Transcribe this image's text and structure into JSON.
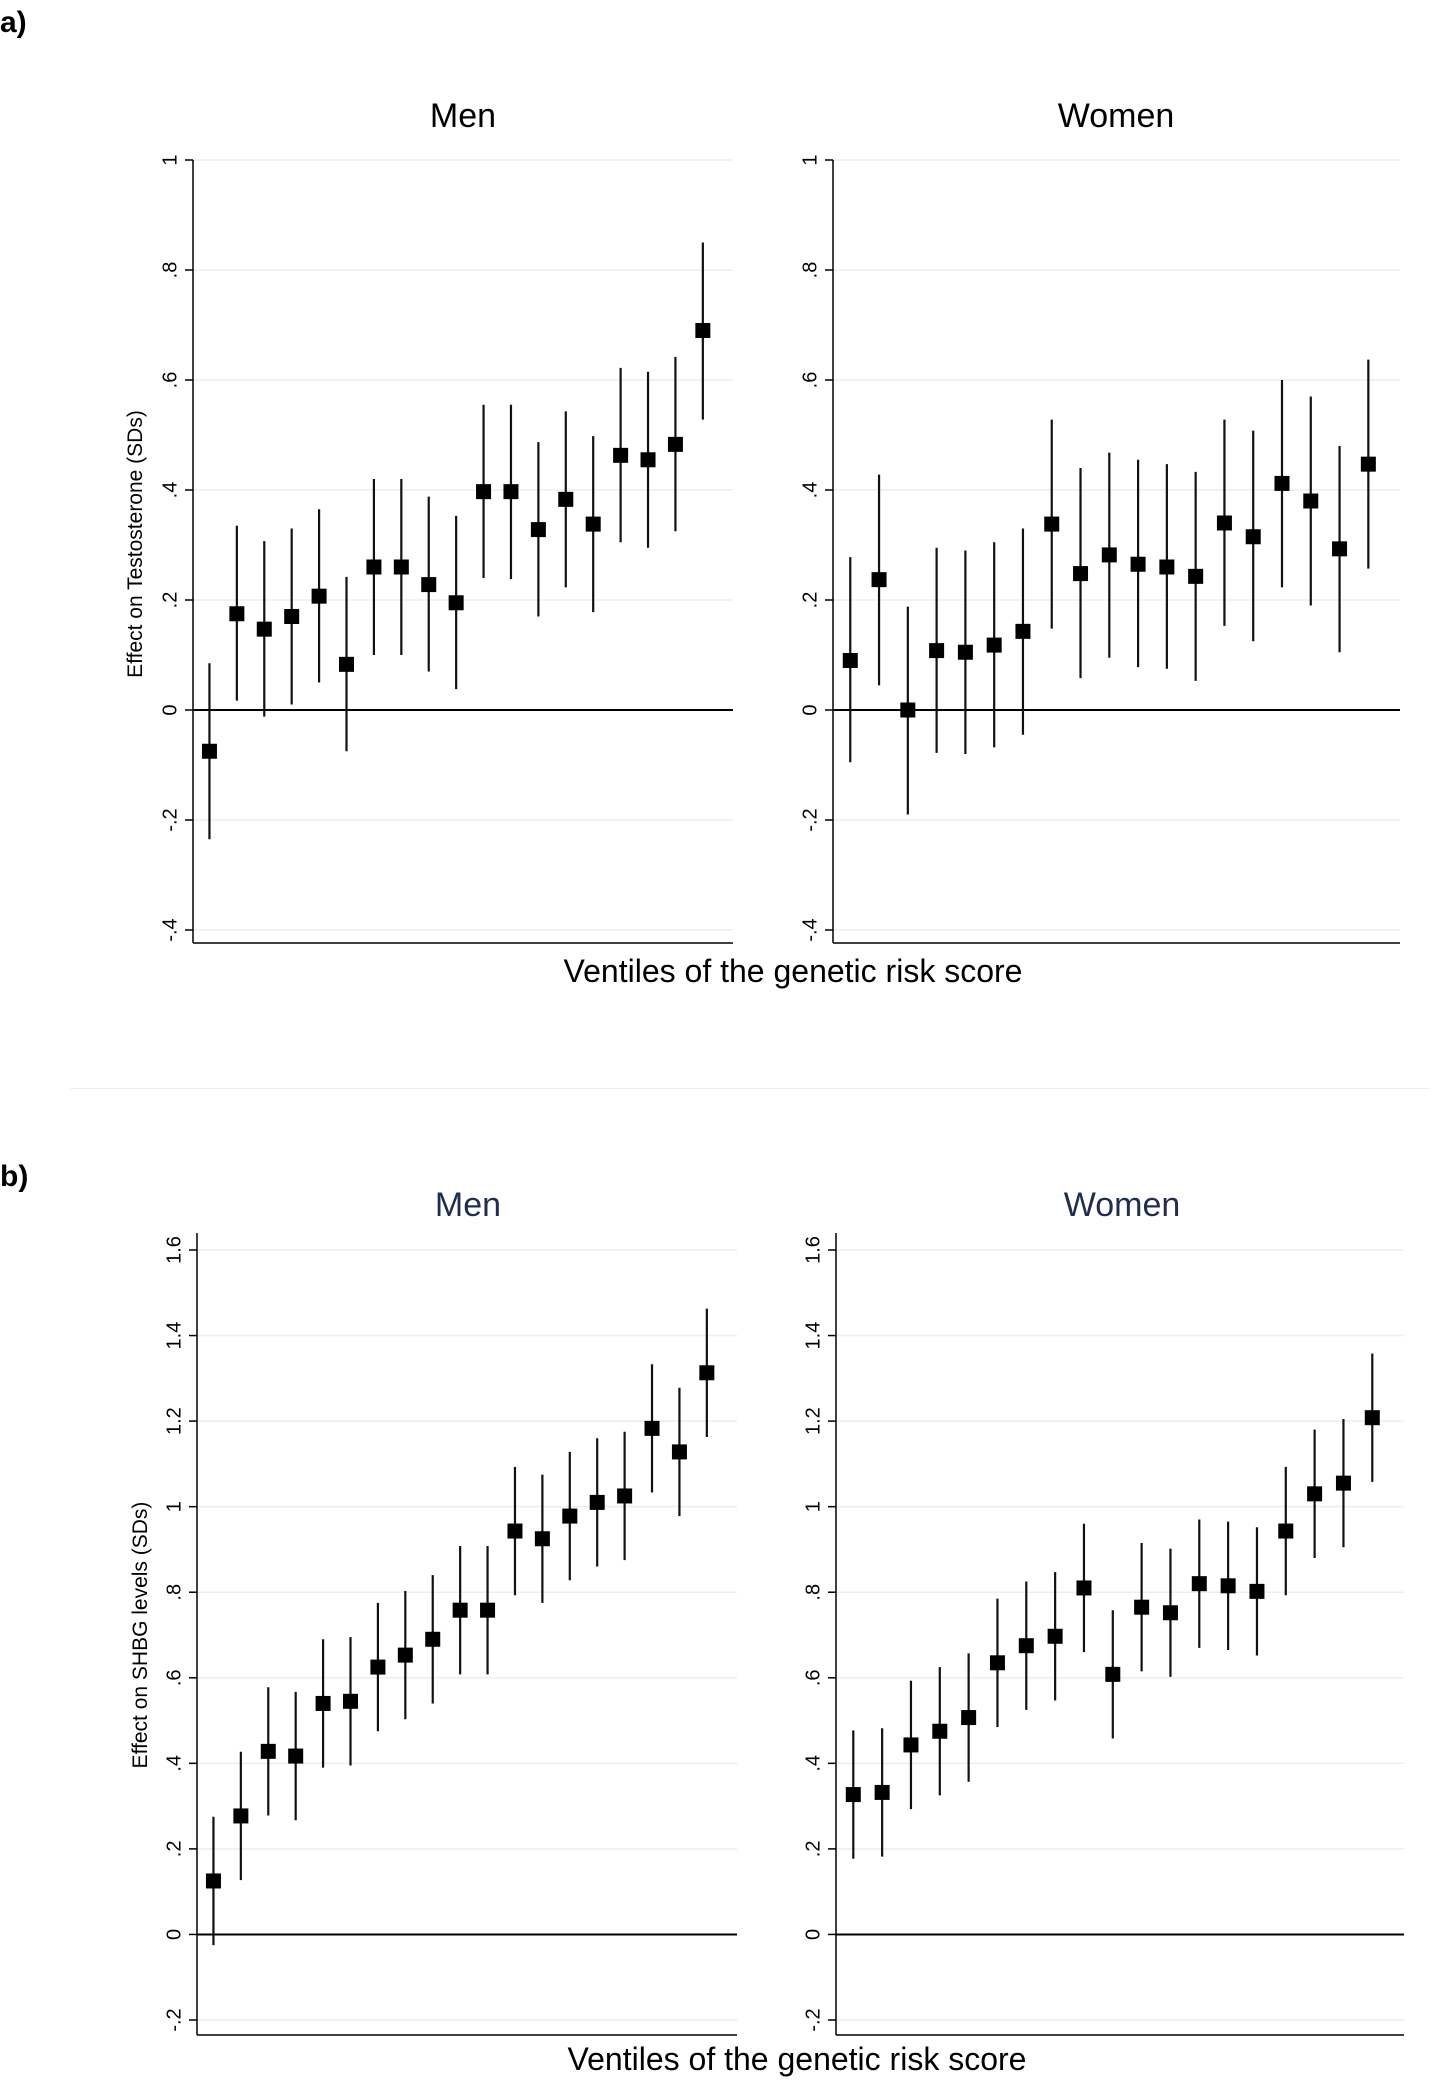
{
  "figure_a": {
    "label": "a)",
    "ylabel": "Effect on Testosterone (SDs)",
    "xlabel": "Ventiles of the genetic risk score"
  },
  "figure_b": {
    "label": "b)",
    "ylabel": "Effect on SHBG levels (SDs)",
    "xlabel": "Ventiles of the genetic risk score"
  },
  "colors": {
    "marker": "#000000",
    "gridline": "#eeeeee",
    "zero_line": "#000000",
    "title_a": "#000000",
    "title_b": "#1f2d4e"
  },
  "chart_data": [
    {
      "type": "scatter",
      "panel": "a",
      "title": "Men",
      "ylabel": "Effect on Testosterone (SDs)",
      "ylim": [
        -0.4,
        1
      ],
      "yticks": [
        -0.4,
        -0.2,
        0,
        0.2,
        0.4,
        0.6,
        0.8,
        1
      ],
      "ytick_labels": [
        "-.4",
        "-.2",
        "0",
        ".2",
        ".4",
        ".6",
        ".8",
        "1"
      ],
      "x": [
        1,
        2,
        3,
        4,
        5,
        6,
        7,
        8,
        9,
        10,
        11,
        12,
        13,
        14,
        15,
        16,
        17,
        18,
        19
      ],
      "y": [
        -0.075,
        0.175,
        0.147,
        0.17,
        0.207,
        0.083,
        0.26,
        0.26,
        0.228,
        0.195,
        0.397,
        0.397,
        0.328,
        0.383,
        0.338,
        0.463,
        0.455,
        0.483,
        0.69
      ],
      "lo": [
        -0.235,
        0.017,
        -0.012,
        0.01,
        0.05,
        -0.075,
        0.1,
        0.1,
        0.07,
        0.038,
        0.24,
        0.238,
        0.17,
        0.223,
        0.178,
        0.305,
        0.295,
        0.325,
        0.528
      ],
      "hi": [
        0.085,
        0.335,
        0.307,
        0.33,
        0.365,
        0.242,
        0.42,
        0.42,
        0.388,
        0.353,
        0.555,
        0.555,
        0.487,
        0.543,
        0.498,
        0.622,
        0.615,
        0.642,
        0.85
      ],
      "grid": true,
      "zero_line": true
    },
    {
      "type": "scatter",
      "panel": "a",
      "title": "Women",
      "ylim": [
        -0.4,
        1
      ],
      "yticks": [
        -0.4,
        -0.2,
        0,
        0.2,
        0.4,
        0.6,
        0.8,
        1
      ],
      "ytick_labels": [
        "-.4",
        "-.2",
        "0",
        ".2",
        ".4",
        ".6",
        ".8",
        "1"
      ],
      "x": [
        1,
        2,
        3,
        4,
        5,
        6,
        7,
        8,
        9,
        10,
        11,
        12,
        13,
        14,
        15,
        16,
        17,
        18,
        19
      ],
      "y": [
        0.09,
        0.237,
        0.0,
        0.108,
        0.105,
        0.118,
        0.143,
        0.338,
        0.248,
        0.282,
        0.265,
        0.26,
        0.243,
        0.34,
        0.315,
        0.412,
        0.38,
        0.293,
        0.447
      ],
      "lo": [
        -0.095,
        0.045,
        -0.19,
        -0.078,
        -0.08,
        -0.068,
        -0.045,
        0.148,
        0.058,
        0.095,
        0.078,
        0.075,
        0.053,
        0.153,
        0.125,
        0.223,
        0.19,
        0.105,
        0.257
      ],
      "hi": [
        0.278,
        0.428,
        0.188,
        0.295,
        0.29,
        0.305,
        0.33,
        0.528,
        0.44,
        0.468,
        0.455,
        0.447,
        0.433,
        0.528,
        0.508,
        0.6,
        0.57,
        0.48,
        0.637
      ],
      "grid": true,
      "zero_line": true
    },
    {
      "type": "scatter",
      "panel": "b",
      "title": "Men",
      "ylabel": "Effect on SHBG levels (SDs)",
      "ylim": [
        -0.2,
        1.6
      ],
      "yticks": [
        -0.2,
        0,
        0.2,
        0.4,
        0.6,
        0.8,
        1,
        1.2,
        1.4,
        1.6
      ],
      "ytick_labels": [
        "-.2",
        "0",
        ".2",
        ".4",
        ".6",
        ".8",
        "1",
        "1.2",
        "1.4",
        "1.6"
      ],
      "x": [
        1,
        2,
        3,
        4,
        5,
        6,
        7,
        8,
        9,
        10,
        11,
        12,
        13,
        14,
        15,
        16,
        17,
        18,
        19
      ],
      "y": [
        0.125,
        0.277,
        0.428,
        0.417,
        0.54,
        0.545,
        0.625,
        0.653,
        0.69,
        0.758,
        0.758,
        0.943,
        0.925,
        0.978,
        1.01,
        1.025,
        1.183,
        1.128,
        1.313
      ],
      "lo": [
        -0.025,
        0.127,
        0.278,
        0.267,
        0.39,
        0.395,
        0.475,
        0.503,
        0.54,
        0.608,
        0.608,
        0.793,
        0.775,
        0.828,
        0.86,
        0.875,
        1.033,
        0.978,
        1.163
      ],
      "hi": [
        0.275,
        0.427,
        0.578,
        0.567,
        0.69,
        0.695,
        0.775,
        0.803,
        0.84,
        0.908,
        0.908,
        1.093,
        1.075,
        1.128,
        1.16,
        1.175,
        1.333,
        1.278,
        1.463
      ],
      "grid": true,
      "zero_line": true
    },
    {
      "type": "scatter",
      "panel": "b",
      "title": "Women",
      "ylim": [
        -0.2,
        1.6
      ],
      "yticks": [
        -0.2,
        0,
        0.2,
        0.4,
        0.6,
        0.8,
        1,
        1.2,
        1.4,
        1.6
      ],
      "ytick_labels": [
        "-.2",
        "0",
        ".2",
        ".4",
        ".6",
        ".8",
        "1",
        "1.2",
        "1.4",
        "1.6"
      ],
      "x": [
        1,
        2,
        3,
        4,
        5,
        6,
        7,
        8,
        9,
        10,
        11,
        12,
        13,
        14,
        15,
        16,
        17,
        18,
        19
      ],
      "y": [
        0.327,
        0.332,
        0.443,
        0.475,
        0.507,
        0.635,
        0.675,
        0.697,
        0.81,
        0.608,
        0.765,
        0.752,
        0.82,
        0.815,
        0.802,
        0.943,
        1.03,
        1.055,
        1.208
      ],
      "lo": [
        0.177,
        0.182,
        0.293,
        0.325,
        0.357,
        0.485,
        0.525,
        0.547,
        0.66,
        0.458,
        0.615,
        0.602,
        0.67,
        0.665,
        0.652,
        0.793,
        0.88,
        0.905,
        1.058
      ],
      "hi": [
        0.477,
        0.482,
        0.593,
        0.625,
        0.657,
        0.785,
        0.825,
        0.847,
        0.96,
        0.758,
        0.915,
        0.902,
        0.97,
        0.965,
        0.952,
        1.093,
        1.18,
        1.205,
        1.358
      ],
      "grid": true,
      "zero_line": true
    }
  ]
}
